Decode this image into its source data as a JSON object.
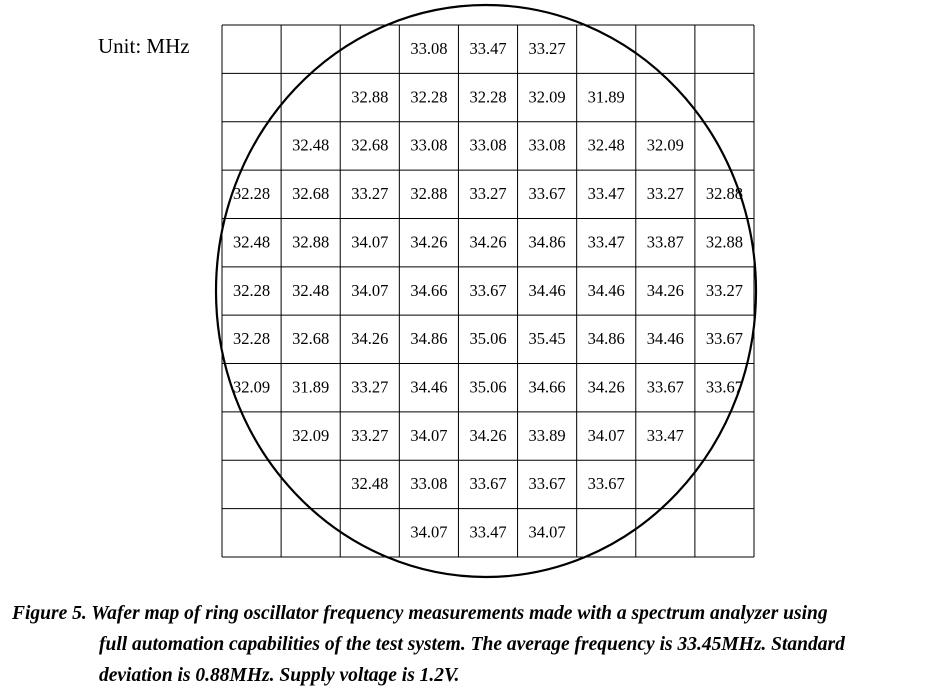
{
  "chart_data": {
    "type": "table",
    "unit_label": "Unit: MHz",
    "rows": [
      [
        "",
        "",
        "",
        "33.08",
        "33.47",
        "33.27",
        "",
        "",
        ""
      ],
      [
        "",
        "",
        "32.88",
        "32.28",
        "32.28",
        "32.09",
        "31.89",
        "",
        ""
      ],
      [
        "",
        "32.48",
        "32.68",
        "33.08",
        "33.08",
        "33.08",
        "32.48",
        "32.09",
        ""
      ],
      [
        "32.28",
        "32.68",
        "33.27",
        "32.88",
        "33.27",
        "33.67",
        "33.47",
        "33.27",
        "32.88"
      ],
      [
        "32.48",
        "32.88",
        "34.07",
        "34.26",
        "34.26",
        "34.86",
        "33.47",
        "33.87",
        "32.88"
      ],
      [
        "32.28",
        "32.48",
        "34.07",
        "34.66",
        "33.67",
        "34.46",
        "34.46",
        "34.26",
        "33.27"
      ],
      [
        "32.28",
        "32.68",
        "34.26",
        "34.86",
        "35.06",
        "35.45",
        "34.86",
        "34.46",
        "33.67"
      ],
      [
        "32.09",
        "31.89",
        "33.27",
        "34.46",
        "35.06",
        "34.66",
        "34.26",
        "33.67",
        "33.67"
      ],
      [
        "",
        "32.09",
        "33.27",
        "34.07",
        "34.26",
        "33.89",
        "34.07",
        "33.47",
        ""
      ],
      [
        "",
        "",
        "32.48",
        "33.08",
        "33.67",
        "33.67",
        "33.67",
        "",
        ""
      ],
      [
        "",
        "",
        "",
        "34.07",
        "33.47",
        "34.07",
        "",
        "",
        ""
      ]
    ]
  },
  "caption": {
    "line1": "Figure 5. Wafer map of ring oscillator frequency measurements made with a spectrum analyzer using",
    "line2": "full automation capabilities of the test system. The average frequency is 33.45MHz. Standard",
    "line3": "deviation is 0.88MHz. Supply voltage is 1.2V."
  }
}
